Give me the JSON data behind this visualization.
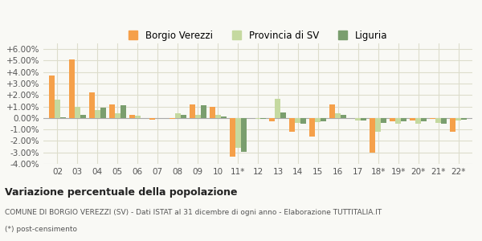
{
  "categories": [
    "02",
    "03",
    "04",
    "05",
    "06",
    "07",
    "08",
    "09",
    "10",
    "11*",
    "12",
    "13",
    "14",
    "15",
    "16",
    "17",
    "18*",
    "19*",
    "20*",
    "21*",
    "22*"
  ],
  "borgio": [
    3.7,
    5.1,
    2.2,
    1.2,
    0.3,
    -0.15,
    -0.1,
    1.2,
    1.0,
    -3.4,
    0.0,
    -0.3,
    -1.2,
    -1.6,
    1.2,
    0.0,
    -3.0,
    -0.3,
    -0.2,
    -0.1,
    -1.2
  ],
  "provincia": [
    1.6,
    1.0,
    0.7,
    0.4,
    0.2,
    0.0,
    0.4,
    0.3,
    0.25,
    -2.6,
    -0.05,
    1.7,
    -0.4,
    -0.35,
    0.4,
    -0.25,
    -1.2,
    -0.5,
    -0.5,
    -0.4,
    -0.2
  ],
  "liguria": [
    0.05,
    0.3,
    0.9,
    1.1,
    0.0,
    0.0,
    0.3,
    1.1,
    0.1,
    -2.95,
    -0.1,
    0.5,
    -0.5,
    -0.3,
    0.3,
    -0.2,
    -0.4,
    -0.3,
    -0.3,
    -0.5,
    -0.15
  ],
  "color_borgio": "#f5a04a",
  "color_provincia": "#c5d9a0",
  "color_liguria": "#7a9e6e",
  "title": "Variazione percentuale della popolazione",
  "subtitle": "COMUNE DI BORGIO VEREZZI (SV) - Dati ISTAT al 31 dicembre di ogni anno - Elaborazione TUTTITALIA.IT",
  "footnote": "(*) post-censimento",
  "legend_borgio": "Borgio Verezzi",
  "legend_provincia": "Provincia di SV",
  "legend_liguria": "Liguria",
  "ylim": [
    -4.0,
    6.5
  ],
  "yticks": [
    -4.0,
    -3.0,
    -2.0,
    -1.0,
    0.0,
    1.0,
    2.0,
    3.0,
    4.0,
    5.0,
    6.0
  ],
  "bg_color": "#f9f9f5",
  "grid_color": "#ddddcc"
}
